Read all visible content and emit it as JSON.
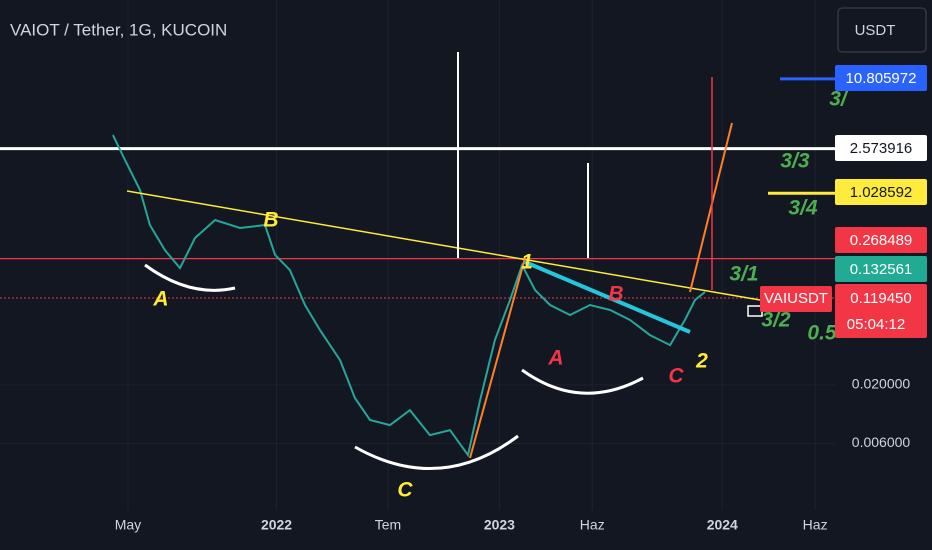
{
  "chart_data": {
    "type": "line",
    "title": "VAIOT / Tether, 1G, KUCOIN",
    "currency": "USDT",
    "log_scale": true,
    "grid": true,
    "x": [
      -0.81,
      -0.16,
      0.65,
      1.18,
      1.99,
      2.8,
      3.61,
      4.69,
      6.03,
      7.38,
      7.92,
      8.72,
      9.53,
      10.34,
      11.42,
      12.22,
      13.03,
      14.11,
      15.18,
      16.26,
      17.34,
      18.31,
      18.96,
      19.76,
      20.57,
      21.22,
      21.92,
      22.73,
      23.8,
      24.88,
      25.96,
      27.03,
      28.11,
      29.19,
      29.99,
      30.53,
      31.07
    ],
    "series": [
      {
        "name": "VAIUSDT",
        "color": "#26a69a",
        "values": [
          3.4,
          2.04,
          1.1,
          0.536,
          0.32,
          0.221,
          0.41,
          0.594,
          0.504,
          0.536,
          0.289,
          0.212,
          0.1034,
          0.0618,
          0.0333,
          0.0153,
          0.00973,
          0.00877,
          0.01194,
          0.00714,
          0.00791,
          0.00473,
          0.01466,
          0.0504,
          0.1146,
          0.235,
          0.1406,
          0.1034,
          0.0842,
          0.1034,
          0.0933,
          0.076,
          0.0558,
          0.0454,
          0.076,
          0.1146,
          0.1352
        ]
      }
    ],
    "xlim": [
      -6.89,
      38.07
    ],
    "xticks": [
      {
        "value": 0,
        "label": "May"
      },
      {
        "value": 8,
        "label": "2022"
      },
      {
        "value": 14,
        "label": "Tem"
      },
      {
        "value": 20,
        "label": "2023"
      },
      {
        "value": 25,
        "label": "Haz"
      },
      {
        "value": 32,
        "label": "2024"
      },
      {
        "value": 37,
        "label": "Haz"
      }
    ],
    "ylim": [
      0.00153,
      54.7
    ],
    "yticks": [
      {
        "value": 0.02,
        "label": "0.020000"
      },
      {
        "value": 0.006,
        "label": "0.006000"
      }
    ],
    "levels": [
      {
        "value": 10.805972,
        "color": "#2962ff"
      },
      {
        "value": 2.573916,
        "color": "#ffffff"
      },
      {
        "value": 1.028592,
        "color": "#ffeb3b"
      },
      {
        "value": 0.268489,
        "color": "#f23645"
      }
    ],
    "other_tag": {
      "value": 0.132561,
      "color": "#22ab94"
    },
    "last_price": {
      "value": 0.11945,
      "label": "0.119450",
      "color": "#f23645"
    },
    "countdown": "05:04:12",
    "annotations": [
      "A",
      "B",
      "C",
      "1",
      "2",
      "A",
      "B",
      "C",
      "3/3",
      "3/4",
      "3/1",
      "3/2",
      "3/",
      "0.5"
    ]
  }
}
